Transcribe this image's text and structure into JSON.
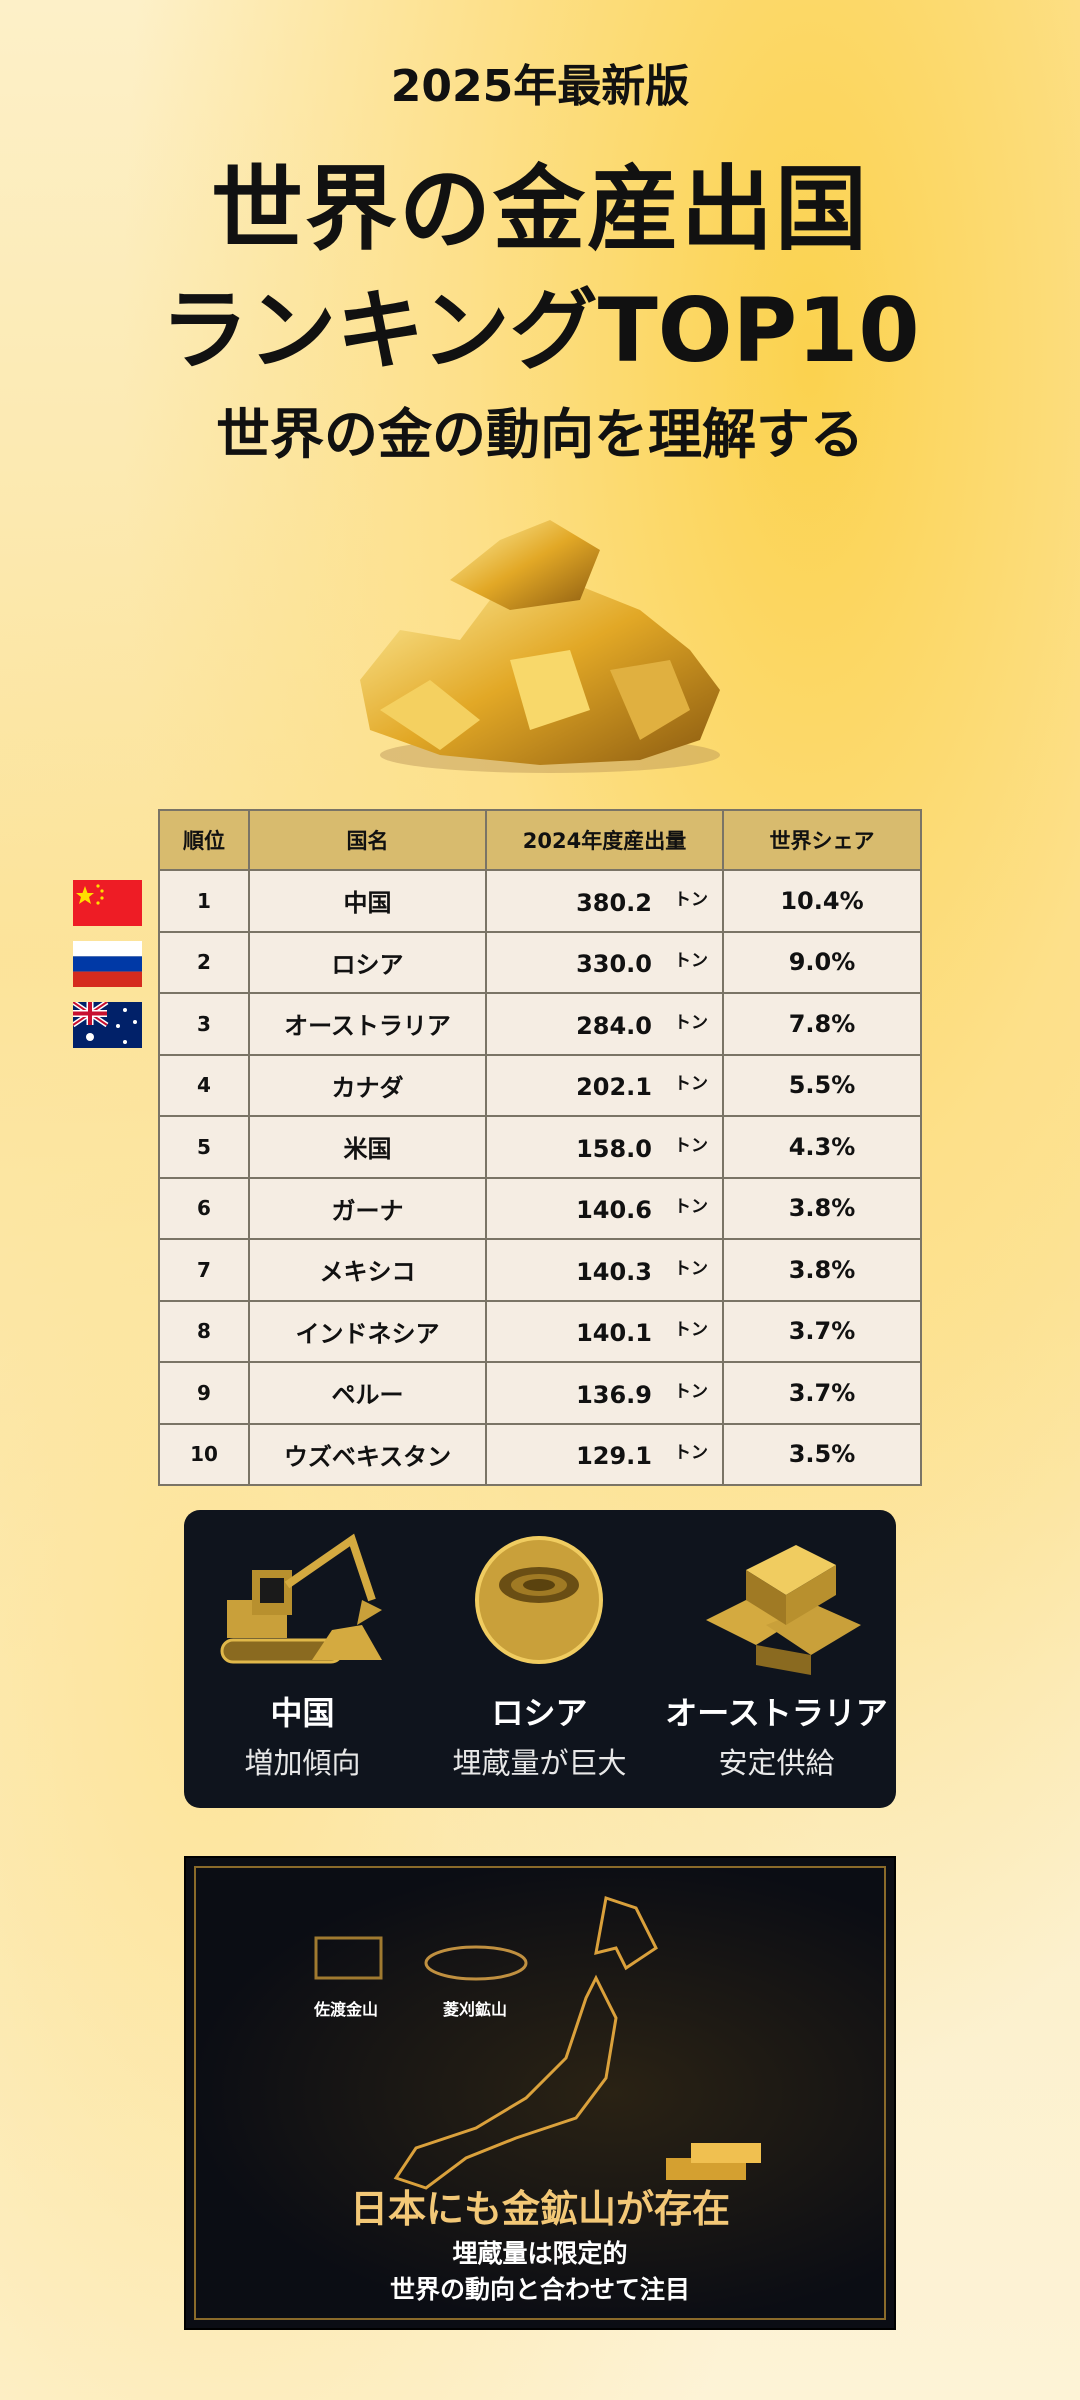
{
  "header": {
    "edition": "2025年最新版",
    "title_line1": "世界の金産出国",
    "title_line2": "ランキングTOP10",
    "subtitle": "世界の金の動向を理解する"
  },
  "table": {
    "headers": [
      "順位",
      "国名",
      "2024年度産出量",
      "世界シェア"
    ],
    "unit": "トン",
    "rows": [
      {
        "rank": "1",
        "country": "中国",
        "amount": "380.2",
        "share": "10.4%"
      },
      {
        "rank": "2",
        "country": "ロシア",
        "amount": "330.0",
        "share": "9.0%"
      },
      {
        "rank": "3",
        "country": "オーストラリア",
        "amount": "284.0",
        "share": "7.8%"
      },
      {
        "rank": "4",
        "country": "カナダ",
        "amount": "202.1",
        "share": "5.5%"
      },
      {
        "rank": "5",
        "country": "米国",
        "amount": "158.0",
        "share": "4.3%"
      },
      {
        "rank": "6",
        "country": "ガーナ",
        "amount": "140.6",
        "share": "3.8%"
      },
      {
        "rank": "7",
        "country": "メキシコ",
        "amount": "140.3",
        "share": "3.8%"
      },
      {
        "rank": "8",
        "country": "インドネシア",
        "amount": "140.1",
        "share": "3.7%"
      },
      {
        "rank": "9",
        "country": "ペルー",
        "amount": "136.9",
        "share": "3.7%"
      },
      {
        "rank": "10",
        "country": "ウズベキスタン",
        "amount": "129.1",
        "share": "3.5%"
      }
    ]
  },
  "flags": [
    "china-flag",
    "russia-flag",
    "australia-flag"
  ],
  "features": [
    {
      "name": "中国",
      "desc": "増加傾向",
      "icon": "excavator-icon"
    },
    {
      "name": "ロシア",
      "desc": "埋蔵量が巨大",
      "icon": "open-pit-mine-icon"
    },
    {
      "name": "オーストラリア",
      "desc": "安定供給",
      "icon": "gold-bars-icon"
    }
  ],
  "japan": {
    "mine1": "佐渡金山",
    "mine2": "菱刈鉱山",
    "title": "日本にも金鉱山が存在",
    "line1": "埋蔵量は限定的",
    "line2": "世界の動向と合わせて注目"
  },
  "colors": {
    "gold": "#d8bb6e",
    "panel": "#0f141d",
    "accent": "#f3c877"
  }
}
